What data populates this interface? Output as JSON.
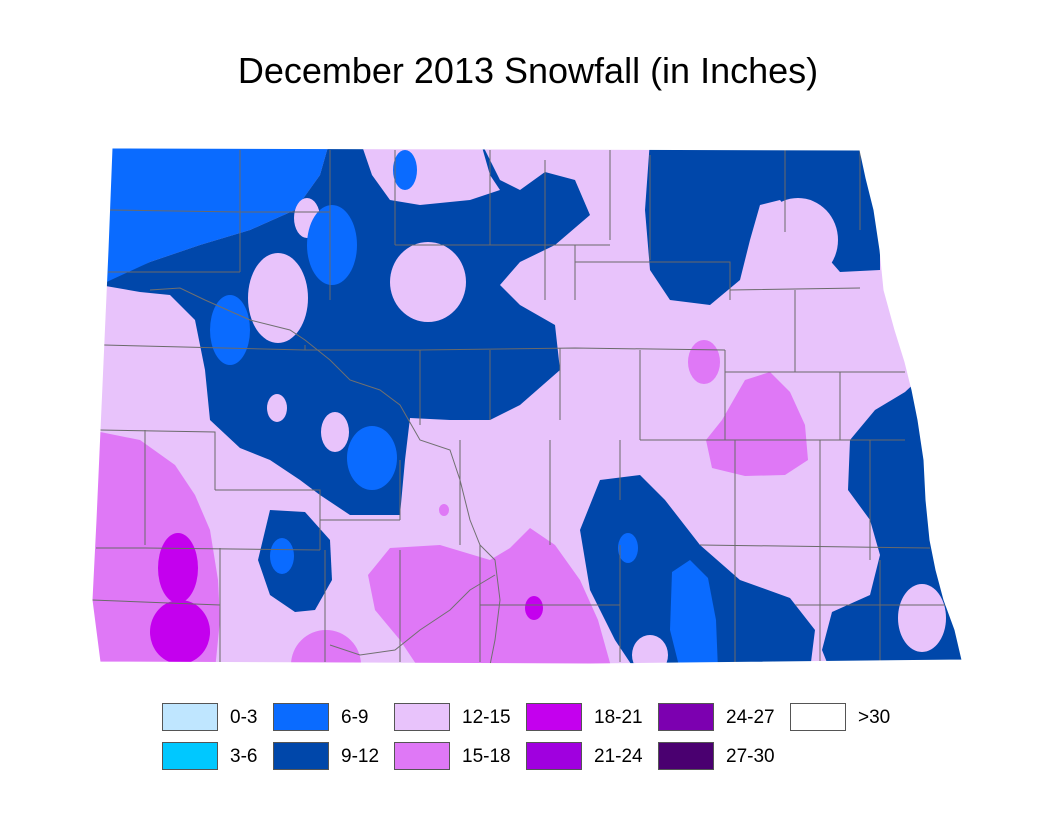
{
  "title": "December 2013 Snowfall (in Inches)",
  "colors": {
    "c0_3": "#bfe6ff",
    "c3_6": "#00c8ff",
    "c6_9": "#0a6bff",
    "c9_12": "#0047aa",
    "c12_15": "#e8c3fb",
    "c15_18": "#df78f6",
    "c18_21": "#c400ee",
    "c21_24": "#a000df",
    "c24_27": "#7c00b0",
    "c27_30": "#4a0070",
    "c30": "#ffffff",
    "county_line": "#6a6a6a"
  },
  "legend": [
    {
      "label": "0-3",
      "color": "#bfe6ff"
    },
    {
      "label": "3-6",
      "color": "#00c8ff"
    },
    {
      "label": "6-9",
      "color": "#0a6bff"
    },
    {
      "label": "9-12",
      "color": "#0047aa"
    },
    {
      "label": "12-15",
      "color": "#e8c3fb"
    },
    {
      "label": "15-18",
      "color": "#df78f6"
    },
    {
      "label": "18-21",
      "color": "#c400ee"
    },
    {
      "label": "21-24",
      "color": "#a000df"
    },
    {
      "label": "24-27",
      "color": "#7c00b0"
    },
    {
      "label": "27-30",
      "color": "#4a0070"
    },
    {
      "label": ">30",
      "color": "#ffffff"
    }
  ]
}
